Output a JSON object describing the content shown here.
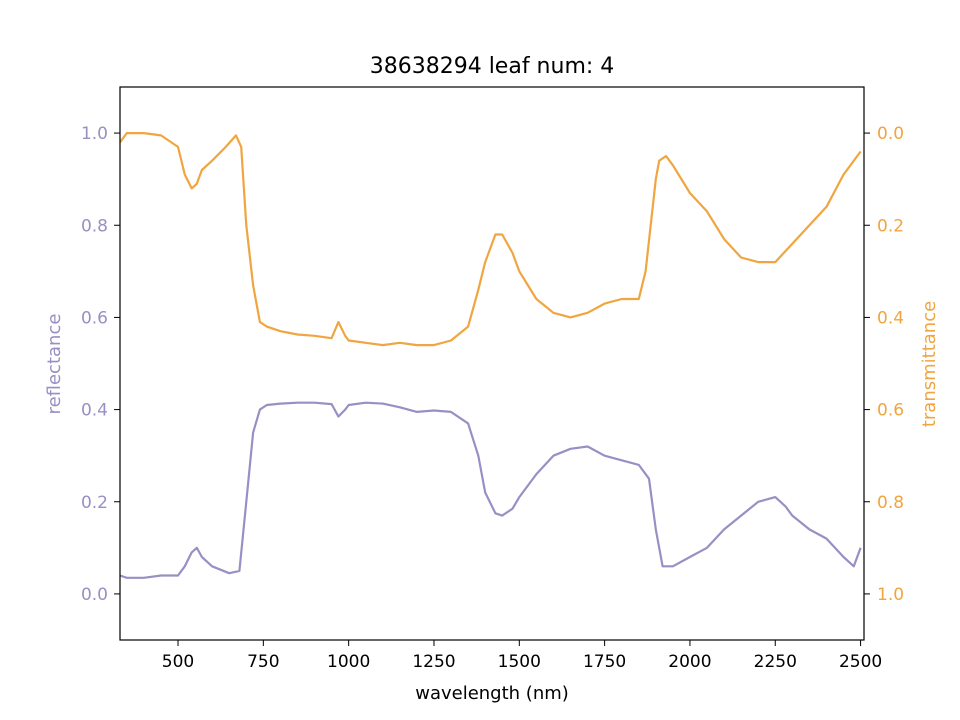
{
  "chart_data": {
    "type": "line",
    "title": "38638294 leaf num: 4",
    "xlabel": "wavelength (nm)",
    "xlim": [
      330,
      2510
    ],
    "xticks": [
      500,
      750,
      1000,
      1250,
      1500,
      1750,
      2000,
      2250,
      2500
    ],
    "left_axis": {
      "label": "reflectance",
      "ylim": [
        -0.1,
        1.1
      ],
      "ticks": [
        0.0,
        0.2,
        0.4,
        0.6,
        0.8,
        1.0
      ],
      "color": "#9890c4"
    },
    "right_axis": {
      "label": "transmittance",
      "inverted": true,
      "ylim": [
        1.1,
        -0.1
      ],
      "ticks": [
        0.0,
        0.2,
        0.4,
        0.6,
        0.8,
        1.0
      ],
      "color": "#f0a540"
    },
    "grid": false,
    "legend": "none",
    "series": [
      {
        "axis": "left",
        "color": "#9890c4",
        "x": [
          330,
          350,
          400,
          450,
          500,
          520,
          540,
          555,
          570,
          600,
          650,
          680,
          700,
          720,
          740,
          760,
          800,
          850,
          900,
          950,
          970,
          990,
          1000,
          1050,
          1100,
          1150,
          1200,
          1250,
          1300,
          1350,
          1380,
          1400,
          1430,
          1450,
          1480,
          1500,
          1550,
          1600,
          1650,
          1700,
          1750,
          1800,
          1850,
          1880,
          1900,
          1910,
          1920,
          1950,
          2000,
          2050,
          2100,
          2150,
          2200,
          2250,
          2280,
          2300,
          2350,
          2400,
          2450,
          2480,
          2500
        ],
        "y": [
          0.04,
          0.035,
          0.035,
          0.04,
          0.04,
          0.06,
          0.09,
          0.1,
          0.08,
          0.06,
          0.045,
          0.05,
          0.2,
          0.35,
          0.4,
          0.41,
          0.413,
          0.415,
          0.415,
          0.412,
          0.385,
          0.4,
          0.41,
          0.415,
          0.413,
          0.405,
          0.395,
          0.398,
          0.395,
          0.37,
          0.3,
          0.22,
          0.175,
          0.17,
          0.185,
          0.21,
          0.26,
          0.3,
          0.315,
          0.32,
          0.3,
          0.29,
          0.28,
          0.25,
          0.14,
          0.1,
          0.06,
          0.06,
          0.08,
          0.1,
          0.14,
          0.17,
          0.2,
          0.21,
          0.19,
          0.17,
          0.14,
          0.12,
          0.08,
          0.06,
          0.1
        ]
      },
      {
        "axis": "right",
        "color": "#f0a540",
        "x": [
          330,
          350,
          400,
          450,
          500,
          520,
          540,
          555,
          570,
          600,
          640,
          670,
          685,
          700,
          720,
          740,
          760,
          800,
          850,
          900,
          950,
          970,
          990,
          1000,
          1050,
          1100,
          1150,
          1200,
          1250,
          1300,
          1350,
          1380,
          1400,
          1430,
          1450,
          1480,
          1500,
          1550,
          1600,
          1650,
          1700,
          1750,
          1800,
          1850,
          1870,
          1900,
          1910,
          1930,
          1950,
          2000,
          2050,
          2100,
          2150,
          2200,
          2250,
          2300,
          2350,
          2400,
          2450,
          2500
        ],
        "y": [
          0.02,
          0.0,
          0.0,
          0.005,
          0.03,
          0.09,
          0.12,
          0.11,
          0.08,
          0.06,
          0.03,
          0.005,
          0.03,
          0.2,
          0.33,
          0.41,
          0.42,
          0.43,
          0.437,
          0.44,
          0.445,
          0.41,
          0.44,
          0.45,
          0.455,
          0.46,
          0.455,
          0.46,
          0.46,
          0.45,
          0.42,
          0.34,
          0.28,
          0.22,
          0.22,
          0.26,
          0.3,
          0.36,
          0.39,
          0.4,
          0.39,
          0.37,
          0.36,
          0.36,
          0.3,
          0.1,
          0.06,
          0.05,
          0.07,
          0.13,
          0.17,
          0.23,
          0.27,
          0.28,
          0.28,
          0.24,
          0.2,
          0.16,
          0.09,
          0.04
        ]
      }
    ]
  }
}
